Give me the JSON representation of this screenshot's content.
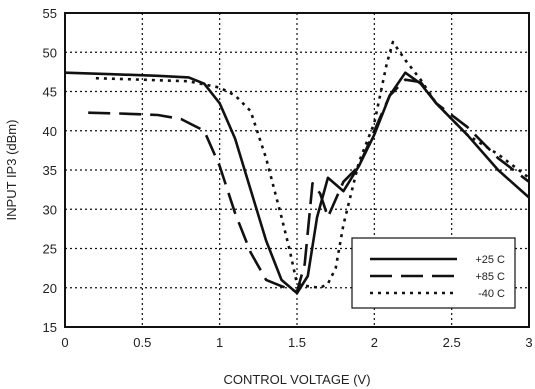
{
  "chart_data": {
    "type": "line",
    "title": "",
    "xlabel": "CONTROL VOLTAGE (V)",
    "ylabel": "INPUT IP3 (dBm)",
    "xlim": [
      0,
      3
    ],
    "ylim": [
      15,
      55
    ],
    "x_ticks": [
      0,
      0.5,
      1,
      1.5,
      2,
      2.5,
      3
    ],
    "x_tick_labels": [
      "0",
      "0.5",
      "1",
      "1.5",
      "2",
      "2.5",
      "3"
    ],
    "y_ticks": [
      15,
      20,
      25,
      30,
      35,
      40,
      45,
      50,
      55
    ],
    "y_tick_labels": [
      "15",
      "20",
      "25",
      "30",
      "35",
      "40",
      "45",
      "50",
      "55"
    ],
    "grid": true,
    "grid_style": "dotted",
    "legend_position": "bottom-right",
    "series": [
      {
        "name": "+25 C",
        "style": "solid",
        "color": "#111111",
        "points": [
          [
            0,
            47.4
          ],
          [
            0.3,
            47.2
          ],
          [
            0.6,
            47.0
          ],
          [
            0.8,
            46.8
          ],
          [
            0.9,
            46.0
          ],
          [
            1.0,
            43.5
          ],
          [
            1.1,
            39.0
          ],
          [
            1.2,
            32.5
          ],
          [
            1.3,
            26.0
          ],
          [
            1.4,
            21.0
          ],
          [
            1.5,
            19.3
          ],
          [
            1.57,
            21.5
          ],
          [
            1.63,
            29.0
          ],
          [
            1.7,
            34.0
          ],
          [
            1.76,
            33.0
          ],
          [
            1.8,
            32.3
          ],
          [
            1.9,
            35.5
          ],
          [
            2.0,
            39.5
          ],
          [
            2.1,
            44.5
          ],
          [
            2.2,
            47.4
          ],
          [
            2.3,
            46.0
          ],
          [
            2.4,
            43.5
          ],
          [
            2.6,
            39.5
          ],
          [
            2.8,
            35.0
          ],
          [
            3.0,
            31.5
          ]
        ]
      },
      {
        "name": "+85 C",
        "style": "long-dash",
        "color": "#111111",
        "points": [
          [
            0.15,
            42.3
          ],
          [
            0.35,
            42.2
          ],
          [
            0.6,
            42.0
          ],
          [
            0.75,
            41.5
          ],
          [
            0.9,
            40.0
          ],
          [
            1.0,
            35.5
          ],
          [
            1.1,
            29.5
          ],
          [
            1.2,
            24.5
          ],
          [
            1.3,
            21.0
          ],
          [
            1.4,
            20.2
          ],
          [
            1.5,
            19.5
          ],
          [
            1.55,
            23.0
          ],
          [
            1.6,
            33.3
          ],
          [
            1.65,
            32.0
          ],
          [
            1.7,
            29.0
          ],
          [
            1.8,
            33.5
          ],
          [
            1.9,
            35.5
          ],
          [
            2.0,
            40.0
          ],
          [
            2.1,
            44.5
          ],
          [
            2.2,
            46.5
          ],
          [
            2.3,
            46.2
          ],
          [
            2.4,
            43.5
          ],
          [
            2.6,
            40.5
          ],
          [
            2.8,
            36.5
          ],
          [
            3.0,
            33.5
          ]
        ]
      },
      {
        "name": "-40 C",
        "style": "dotted",
        "color": "#111111",
        "points": [
          [
            0.2,
            46.7
          ],
          [
            0.5,
            46.5
          ],
          [
            0.8,
            46.3
          ],
          [
            1.0,
            45.5
          ],
          [
            1.1,
            44.5
          ],
          [
            1.2,
            42.5
          ],
          [
            1.3,
            36.5
          ],
          [
            1.4,
            29.0
          ],
          [
            1.45,
            25.0
          ],
          [
            1.5,
            20.5
          ],
          [
            1.57,
            20.2
          ],
          [
            1.65,
            20.0
          ],
          [
            1.7,
            20.5
          ],
          [
            1.75,
            22.5
          ],
          [
            1.8,
            28.0
          ],
          [
            1.9,
            36.0
          ],
          [
            2.0,
            41.0
          ],
          [
            2.08,
            48.5
          ],
          [
            2.12,
            51.3
          ],
          [
            2.2,
            49.0
          ],
          [
            2.3,
            46.5
          ],
          [
            2.4,
            43.5
          ],
          [
            2.6,
            39.5
          ],
          [
            2.8,
            37.0
          ],
          [
            3.0,
            34.0
          ]
        ]
      }
    ]
  }
}
